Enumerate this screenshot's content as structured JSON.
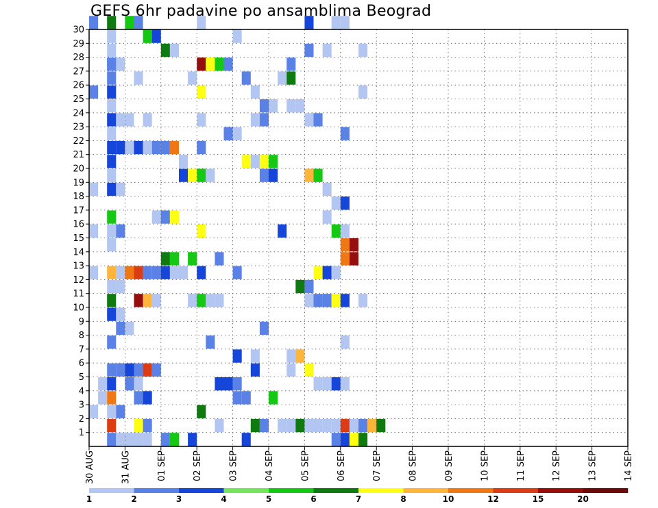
{
  "chart_data": {
    "type": "heatmap",
    "title": "GEFS 6hr padavine po ansamblima Beograd",
    "x_ticks": [
      "30 AUG",
      "31 AUG",
      "01 SEP",
      "02 SEP",
      "03 SEP",
      "04 SEP",
      "05 SEP",
      "06 SEP",
      "07 SEP",
      "08 SEP",
      "09 SEP",
      "10 SEP",
      "11 SEP",
      "12 SEP",
      "13 SEP",
      "14 SEP"
    ],
    "y_ticks": [
      "1",
      "2",
      "3",
      "4",
      "5",
      "6",
      "7",
      "8",
      "9",
      "10",
      "11",
      "12",
      "13",
      "14",
      "15",
      "16",
      "17",
      "18",
      "19",
      "20",
      "21",
      "22",
      "23",
      "24",
      "25",
      "26",
      "27",
      "28",
      "29",
      "30"
    ],
    "y_range": [
      0,
      30
    ],
    "grid": true,
    "colorbar": {
      "labels": [
        "1",
        "2",
        "3",
        "4",
        "5",
        "6",
        "7",
        "8",
        "10",
        "12",
        "15",
        "20"
      ],
      "colors": [
        "#b3c6f2",
        "#5a82e6",
        "#1645d9",
        "#73e65a",
        "#14c814",
        "#0f7a0f",
        "#ffff14",
        "#ffb43c",
        "#f07814",
        "#dc3c14",
        "#960f0f",
        "#6e0a0a"
      ]
    },
    "cells_note": "each cell: [member, step index (6h from 30 AUG 00Z), color class index]",
    "cells": [
      [
        30,
        0,
        1
      ],
      [
        30,
        2,
        5
      ],
      [
        30,
        4,
        4
      ],
      [
        30,
        5,
        1
      ],
      [
        30,
        12,
        0
      ],
      [
        30,
        24,
        2
      ],
      [
        30,
        27,
        0
      ],
      [
        30,
        28,
        0
      ],
      [
        29,
        2,
        0
      ],
      [
        29,
        6,
        4
      ],
      [
        29,
        7,
        2
      ],
      [
        29,
        16,
        0
      ],
      [
        28,
        2,
        0
      ],
      [
        28,
        8,
        5
      ],
      [
        28,
        9,
        0
      ],
      [
        28,
        24,
        1
      ],
      [
        28,
        26,
        0
      ],
      [
        28,
        30,
        0
      ],
      [
        27,
        2,
        1
      ],
      [
        27,
        2,
        1
      ],
      [
        27,
        3,
        0
      ],
      [
        27,
        12,
        10
      ],
      [
        27,
        13,
        6
      ],
      [
        27,
        14,
        4
      ],
      [
        27,
        15,
        1
      ],
      [
        27,
        22,
        1
      ],
      [
        26,
        2,
        1
      ],
      [
        26,
        5,
        0
      ],
      [
        26,
        11,
        0
      ],
      [
        26,
        17,
        1
      ],
      [
        26,
        21,
        0
      ],
      [
        26,
        22,
        5
      ],
      [
        25,
        0,
        1
      ],
      [
        25,
        2,
        2
      ],
      [
        25,
        12,
        6
      ],
      [
        25,
        18,
        0
      ],
      [
        25,
        30,
        0
      ],
      [
        24,
        2,
        0
      ],
      [
        24,
        19,
        1
      ],
      [
        24,
        20,
        0
      ],
      [
        24,
        22,
        0
      ],
      [
        24,
        23,
        0
      ],
      [
        23,
        2,
        2
      ],
      [
        23,
        3,
        0
      ],
      [
        23,
        4,
        0
      ],
      [
        23,
        6,
        0
      ],
      [
        23,
        12,
        0
      ],
      [
        23,
        18,
        0
      ],
      [
        23,
        19,
        1
      ],
      [
        23,
        24,
        0
      ],
      [
        23,
        25,
        1
      ],
      [
        22,
        2,
        0
      ],
      [
        22,
        15,
        1
      ],
      [
        22,
        16,
        0
      ],
      [
        22,
        28,
        1
      ],
      [
        21,
        2,
        2
      ],
      [
        21,
        3,
        2
      ],
      [
        21,
        4,
        0
      ],
      [
        21,
        5,
        2
      ],
      [
        21,
        6,
        0
      ],
      [
        21,
        7,
        1
      ],
      [
        21,
        8,
        1
      ],
      [
        21,
        9,
        8
      ],
      [
        21,
        12,
        1
      ],
      [
        20,
        2,
        2
      ],
      [
        20,
        10,
        0
      ],
      [
        20,
        17,
        6
      ],
      [
        20,
        18,
        0
      ],
      [
        20,
        19,
        6
      ],
      [
        20,
        20,
        4
      ],
      [
        19,
        2,
        0
      ],
      [
        19,
        10,
        2
      ],
      [
        19,
        11,
        6
      ],
      [
        19,
        12,
        4
      ],
      [
        19,
        13,
        0
      ],
      [
        19,
        19,
        1
      ],
      [
        19,
        20,
        2
      ],
      [
        19,
        24,
        7
      ],
      [
        19,
        25,
        4
      ],
      [
        18,
        0,
        0
      ],
      [
        18,
        2,
        2
      ],
      [
        18,
        3,
        0
      ],
      [
        18,
        26,
        0
      ],
      [
        17,
        27,
        0
      ],
      [
        17,
        28,
        2
      ],
      [
        16,
        2,
        4
      ],
      [
        16,
        7,
        0
      ],
      [
        16,
        8,
        1
      ],
      [
        16,
        9,
        6
      ],
      [
        16,
        26,
        0
      ],
      [
        15,
        0,
        0
      ],
      [
        15,
        2,
        0
      ],
      [
        15,
        3,
        1
      ],
      [
        15,
        12,
        6
      ],
      [
        15,
        21,
        2
      ],
      [
        15,
        27,
        4
      ],
      [
        15,
        28,
        0
      ],
      [
        14,
        2,
        0
      ],
      [
        14,
        28,
        8
      ],
      [
        14,
        29,
        10
      ],
      [
        13,
        8,
        5
      ],
      [
        13,
        9,
        4
      ],
      [
        13,
        11,
        4
      ],
      [
        13,
        14,
        1
      ],
      [
        13,
        28,
        8
      ],
      [
        13,
        29,
        10
      ],
      [
        12,
        0,
        0
      ],
      [
        12,
        2,
        7
      ],
      [
        12,
        3,
        0
      ],
      [
        12,
        4,
        8
      ],
      [
        12,
        5,
        9
      ],
      [
        12,
        6,
        1
      ],
      [
        12,
        7,
        1
      ],
      [
        12,
        8,
        2
      ],
      [
        12,
        9,
        0
      ],
      [
        12,
        10,
        0
      ],
      [
        12,
        12,
        2
      ],
      [
        12,
        16,
        1
      ],
      [
        12,
        25,
        6
      ],
      [
        12,
        26,
        2
      ],
      [
        12,
        27,
        0
      ],
      [
        11,
        2,
        0
      ],
      [
        11,
        3,
        0
      ],
      [
        11,
        23,
        5
      ],
      [
        11,
        24,
        1
      ],
      [
        10,
        2,
        5
      ],
      [
        10,
        5,
        10
      ],
      [
        10,
        6,
        7
      ],
      [
        10,
        7,
        0
      ],
      [
        10,
        11,
        0
      ],
      [
        10,
        12,
        4
      ],
      [
        10,
        13,
        0
      ],
      [
        10,
        14,
        0
      ],
      [
        10,
        24,
        0
      ],
      [
        10,
        25,
        1
      ],
      [
        10,
        26,
        1
      ],
      [
        10,
        27,
        6
      ],
      [
        10,
        28,
        2
      ],
      [
        10,
        30,
        0
      ],
      [
        9,
        2,
        2
      ],
      [
        9,
        3,
        0
      ],
      [
        8,
        3,
        1
      ],
      [
        8,
        4,
        0
      ],
      [
        8,
        19,
        1
      ],
      [
        7,
        2,
        1
      ],
      [
        7,
        13,
        1
      ],
      [
        7,
        28,
        0
      ],
      [
        6,
        16,
        2
      ],
      [
        6,
        18,
        0
      ],
      [
        6,
        22,
        0
      ],
      [
        6,
        23,
        7
      ],
      [
        5,
        2,
        1
      ],
      [
        5,
        3,
        1
      ],
      [
        5,
        4,
        2
      ],
      [
        5,
        5,
        1
      ],
      [
        5,
        6,
        9
      ],
      [
        5,
        7,
        1
      ],
      [
        5,
        18,
        2
      ],
      [
        5,
        22,
        0
      ],
      [
        5,
        24,
        6
      ],
      [
        4,
        1,
        0
      ],
      [
        4,
        2,
        2
      ],
      [
        4,
        4,
        1
      ],
      [
        4,
        5,
        0
      ],
      [
        4,
        14,
        2
      ],
      [
        4,
        15,
        2
      ],
      [
        4,
        16,
        1
      ],
      [
        4,
        25,
        0
      ],
      [
        4,
        26,
        0
      ],
      [
        4,
        27,
        2
      ],
      [
        4,
        28,
        0
      ],
      [
        3,
        1,
        0
      ],
      [
        3,
        2,
        8
      ],
      [
        3,
        5,
        1
      ],
      [
        3,
        6,
        2
      ],
      [
        3,
        16,
        1
      ],
      [
        3,
        17,
        1
      ],
      [
        3,
        20,
        4
      ],
      [
        2,
        0,
        0
      ],
      [
        2,
        2,
        0
      ],
      [
        2,
        3,
        1
      ],
      [
        2,
        12,
        5
      ],
      [
        1,
        2,
        9
      ],
      [
        1,
        5,
        6
      ],
      [
        1,
        6,
        1
      ],
      [
        1,
        14,
        0
      ],
      [
        1,
        18,
        5
      ],
      [
        1,
        19,
        1
      ],
      [
        1,
        21,
        0
      ],
      [
        1,
        22,
        0
      ],
      [
        1,
        23,
        5
      ],
      [
        1,
        24,
        0
      ],
      [
        1,
        25,
        0
      ],
      [
        1,
        26,
        0
      ],
      [
        1,
        27,
        0
      ],
      [
        1,
        28,
        9
      ],
      [
        1,
        29,
        0
      ],
      [
        1,
        30,
        1
      ],
      [
        1,
        31,
        7
      ],
      [
        1,
        32,
        5
      ],
      [
        0,
        2,
        1
      ],
      [
        0,
        3,
        0
      ],
      [
        0,
        4,
        0
      ],
      [
        0,
        5,
        0
      ],
      [
        0,
        6,
        0
      ],
      [
        0,
        8,
        1
      ],
      [
        0,
        9,
        4
      ],
      [
        0,
        11,
        2
      ],
      [
        0,
        17,
        2
      ],
      [
        0,
        27,
        1
      ],
      [
        0,
        28,
        2
      ],
      [
        0,
        29,
        6
      ],
      [
        0,
        30,
        5
      ]
    ]
  }
}
